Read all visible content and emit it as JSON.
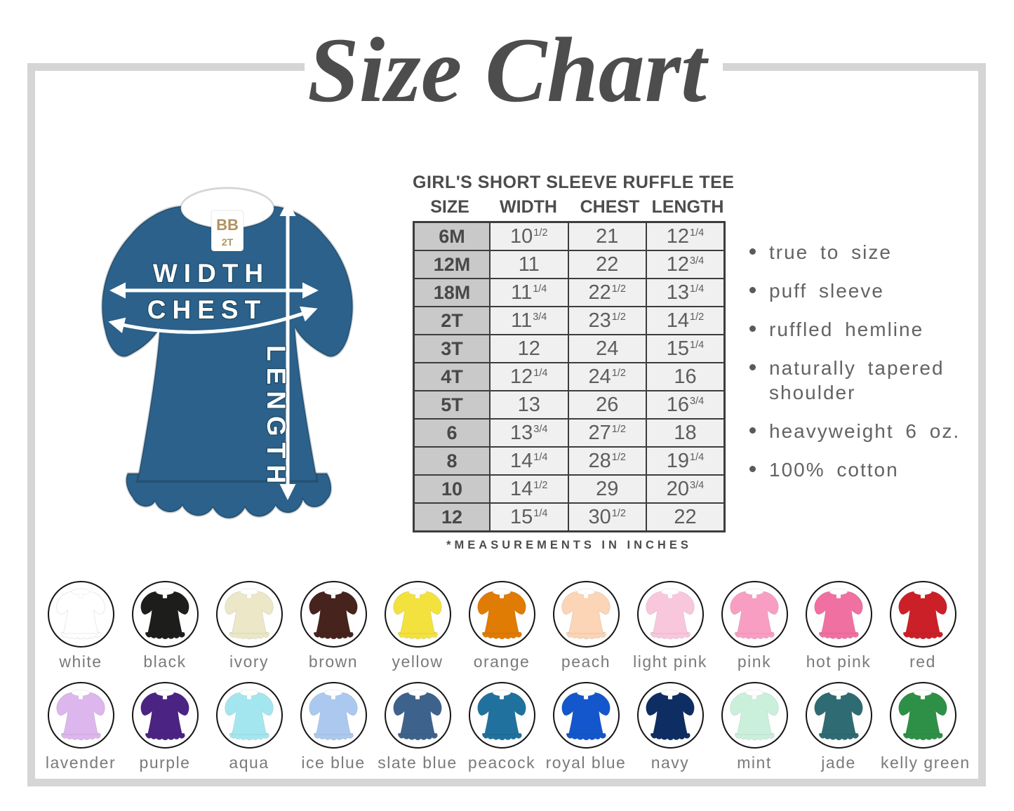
{
  "title": "Size Chart",
  "diagram": {
    "labels": {
      "width": "WIDTH",
      "chest": "CHEST",
      "length": "LENGTH"
    },
    "tee_color": "#2b618a",
    "tee_color_name": "peacock",
    "tag_brand": "BB",
    "tag_size": "2T"
  },
  "chart_data": {
    "type": "table",
    "title": "GIRL'S SHORT SLEEVE RUFFLE TEE",
    "columns": [
      "SIZE",
      "WIDTH",
      "CHEST",
      "LENGTH"
    ],
    "rows": [
      [
        "6M",
        "10 1/2",
        "21",
        "12 1/4"
      ],
      [
        "12M",
        "11",
        "22",
        "12 3/4"
      ],
      [
        "18M",
        "11 1/4",
        "22 1/2",
        "13 1/4"
      ],
      [
        "2T",
        "11 3/4",
        "23 1/2",
        "14 1/2"
      ],
      [
        "3T",
        "12",
        "24",
        "15 1/4"
      ],
      [
        "4T",
        "12 1/4",
        "24 1/2",
        "16"
      ],
      [
        "5T",
        "13",
        "26",
        "16 3/4"
      ],
      [
        "6",
        "13 3/4",
        "27 1/2",
        "18"
      ],
      [
        "8",
        "14 1/4",
        "28 1/2",
        "19 1/4"
      ],
      [
        "10",
        "14 1/2",
        "29",
        "20 3/4"
      ],
      [
        "12",
        "15 1/4",
        "30 1/2",
        "22"
      ]
    ],
    "note": "*MEASUREMENTS IN INCHES",
    "units": "inches"
  },
  "features": [
    "true to size",
    "puff sleeve",
    "ruffled hemline",
    "naturally tapered shoulder",
    "heavyweight 6 oz.",
    "100% cotton"
  ],
  "swatches": {
    "rows": [
      [
        {
          "name": "white",
          "hex": "#ffffff"
        },
        {
          "name": "black",
          "hex": "#1d1d1b"
        },
        {
          "name": "ivory",
          "hex": "#ece7c7"
        },
        {
          "name": "brown",
          "hex": "#46231c"
        },
        {
          "name": "yellow",
          "hex": "#f3e23e"
        },
        {
          "name": "orange",
          "hex": "#e07b04"
        },
        {
          "name": "peach",
          "hex": "#fcd5b6"
        },
        {
          "name": "light pink",
          "hex": "#f9c7dc"
        },
        {
          "name": "pink",
          "hex": "#f89ec3"
        },
        {
          "name": "hot pink",
          "hex": "#ef70a1"
        },
        {
          "name": "red",
          "hex": "#cb2027"
        }
      ],
      [
        {
          "name": "lavender",
          "hex": "#dcb6ec"
        },
        {
          "name": "purple",
          "hex": "#4b2383"
        },
        {
          "name": "aqua",
          "hex": "#a4e6f0"
        },
        {
          "name": "ice blue",
          "hex": "#abc9ef"
        },
        {
          "name": "slate blue",
          "hex": "#3d628b"
        },
        {
          "name": "peacock",
          "hex": "#20719d"
        },
        {
          "name": "royal blue",
          "hex": "#1456cb"
        },
        {
          "name": "navy",
          "hex": "#0e2d63"
        },
        {
          "name": "mint",
          "hex": "#caf0dc"
        },
        {
          "name": "jade",
          "hex": "#2e6b73"
        },
        {
          "name": "kelly green",
          "hex": "#2d9046"
        }
      ]
    ]
  }
}
